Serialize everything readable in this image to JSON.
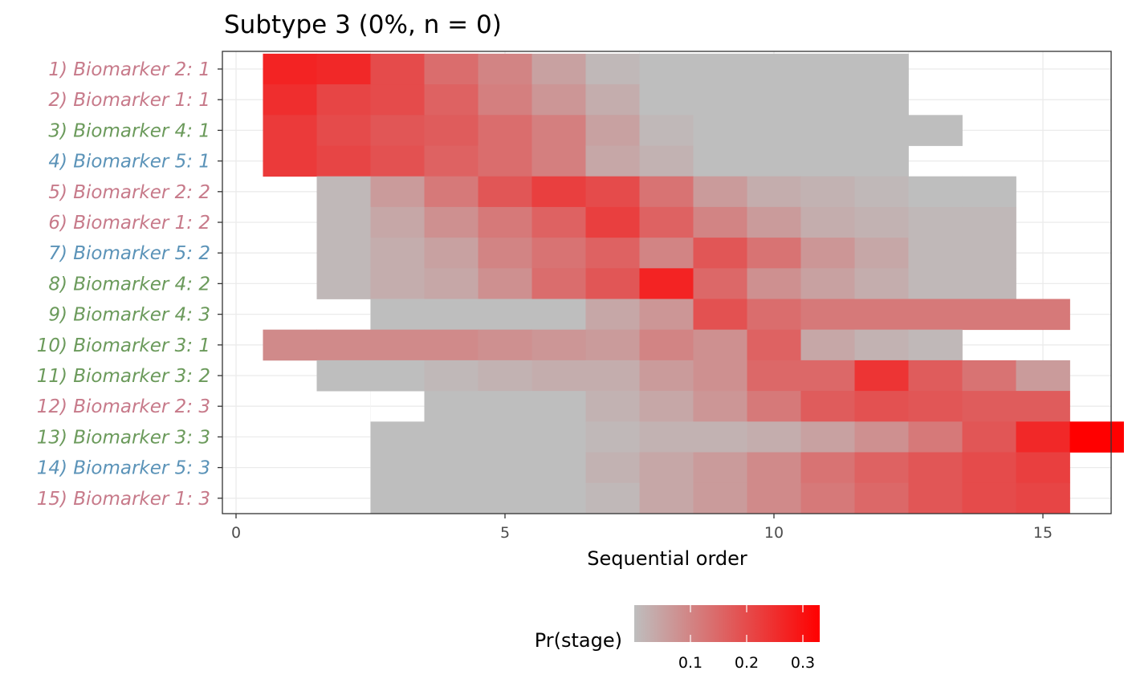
{
  "chart_data": {
    "type": "heatmap",
    "title": "Subtype 3 (0%, n = 0)",
    "xlabel": "Sequential order",
    "ylabel": "",
    "xlim": [
      -0.5,
      16.0
    ],
    "x_ticks": [
      0,
      5,
      10,
      15
    ],
    "grid": true,
    "legend": {
      "title": "Pr(stage)",
      "position": "bottom",
      "ticks": [
        0.1,
        0.2,
        0.3
      ],
      "tick_labels": [
        "0.1",
        "0.2",
        "0.3"
      ],
      "range": [
        0.0,
        0.33
      ],
      "color_low": "#BEBEBE",
      "color_high": "#FF0000"
    },
    "rows": [
      {
        "label": "1) Biomarker 2: 1",
        "color": "#C77A8A"
      },
      {
        "label": "2) Biomarker 1: 1",
        "color": "#C77A8A"
      },
      {
        "label": "3) Biomarker 4: 1",
        "color": "#6B9A5B"
      },
      {
        "label": "4) Biomarker 5: 1",
        "color": "#5B93B8"
      },
      {
        "label": "5) Biomarker 2: 2",
        "color": "#C77A8A"
      },
      {
        "label": "6) Biomarker 1: 2",
        "color": "#C77A8A"
      },
      {
        "label": "7) Biomarker 5: 2",
        "color": "#5B93B8"
      },
      {
        "label": "8) Biomarker 4: 2",
        "color": "#6B9A5B"
      },
      {
        "label": "9) Biomarker 4: 3",
        "color": "#6B9A5B"
      },
      {
        "label": "10) Biomarker 3: 1",
        "color": "#6B9A5B"
      },
      {
        "label": "11) Biomarker 3: 2",
        "color": "#6B9A5B"
      },
      {
        "label": "12) Biomarker 2: 3",
        "color": "#C77A8A"
      },
      {
        "label": "13) Biomarker 3: 3",
        "color": "#6B9A5B"
      },
      {
        "label": "14) Biomarker 5: 3",
        "color": "#5B93B8"
      },
      {
        "label": "15) Biomarker 1: 3",
        "color": "#C77A8A"
      }
    ],
    "cells": [
      {
        "start": 1,
        "values": [
          0.27,
          0.26,
          0.2,
          0.14,
          0.1,
          0.05,
          0.01,
          0.0,
          0.0,
          0.0,
          0.0,
          0.0
        ]
      },
      {
        "start": 1,
        "values": [
          0.25,
          0.21,
          0.2,
          0.16,
          0.11,
          0.07,
          0.03,
          0.0,
          0.0,
          0.0,
          0.0,
          0.0
        ]
      },
      {
        "start": 1,
        "values": [
          0.23,
          0.2,
          0.18,
          0.17,
          0.14,
          0.11,
          0.05,
          0.01,
          0.0,
          0.0,
          0.0,
          0.0,
          0.0
        ]
      },
      {
        "start": 1,
        "values": [
          0.23,
          0.21,
          0.19,
          0.16,
          0.14,
          0.11,
          0.04,
          0.02,
          0.0,
          0.0,
          0.0,
          0.0
        ]
      },
      {
        "start": 2,
        "values": [
          0.01,
          0.06,
          0.12,
          0.18,
          0.22,
          0.2,
          0.13,
          0.06,
          0.03,
          0.02,
          0.01,
          0.0,
          0.0
        ]
      },
      {
        "start": 2,
        "values": [
          0.01,
          0.04,
          0.08,
          0.12,
          0.16,
          0.22,
          0.16,
          0.1,
          0.06,
          0.03,
          0.02,
          0.01,
          0.01
        ]
      },
      {
        "start": 2,
        "values": [
          0.01,
          0.03,
          0.05,
          0.1,
          0.13,
          0.16,
          0.1,
          0.18,
          0.13,
          0.07,
          0.04,
          0.01,
          0.01
        ]
      },
      {
        "start": 2,
        "values": [
          0.01,
          0.03,
          0.04,
          0.08,
          0.14,
          0.18,
          0.27,
          0.15,
          0.08,
          0.05,
          0.03,
          0.01,
          0.01
        ]
      },
      {
        "start": 3,
        "values": [
          0.0,
          0.0,
          0.0,
          0.0,
          0.04,
          0.07,
          0.19,
          0.14,
          0.12,
          0.12,
          0.12,
          0.12,
          0.12
        ]
      },
      {
        "start": 1,
        "values": [
          0.09,
          0.09,
          0.09,
          0.09,
          0.08,
          0.07,
          0.06,
          0.1,
          0.08,
          0.16,
          0.04,
          0.02,
          0.01
        ]
      },
      {
        "start": 2,
        "values": [
          0.0,
          0.0,
          0.01,
          0.02,
          0.03,
          0.03,
          0.06,
          0.08,
          0.15,
          0.15,
          0.24,
          0.17,
          0.13,
          0.06
        ]
      },
      {
        "start": 4,
        "values": [
          0.0,
          0.0,
          0.0,
          0.02,
          0.04,
          0.07,
          0.12,
          0.17,
          0.19,
          0.18,
          0.17,
          0.17
        ]
      },
      {
        "start": 3,
        "values": [
          0.0,
          0.0,
          0.0,
          0.0,
          0.01,
          0.02,
          0.02,
          0.03,
          0.05,
          0.08,
          0.12,
          0.18,
          0.26,
          0.33
        ]
      },
      {
        "start": 3,
        "values": [
          0.0,
          0.0,
          0.0,
          0.0,
          0.02,
          0.04,
          0.06,
          0.09,
          0.13,
          0.16,
          0.18,
          0.2,
          0.22
        ]
      },
      {
        "start": 3,
        "values": [
          0.0,
          0.0,
          0.0,
          0.0,
          0.01,
          0.04,
          0.06,
          0.09,
          0.12,
          0.15,
          0.18,
          0.2,
          0.21
        ]
      }
    ]
  }
}
